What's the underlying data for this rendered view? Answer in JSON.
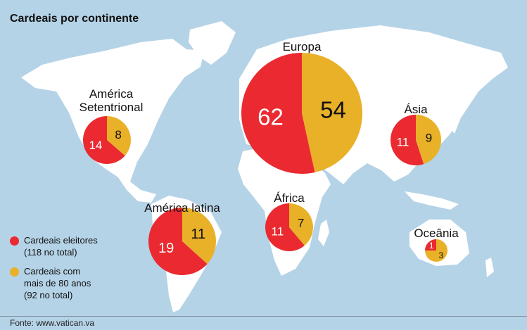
{
  "title": "Cardeais por continente",
  "source": "Fonte: www.vatican.va",
  "colors": {
    "electors": "#ea2a30",
    "over80": "#e9b128",
    "land": "#ffffff",
    "sea": "#b5d3e7"
  },
  "legend": [
    {
      "label": "Cardeais eleitores\n(118 no total)",
      "color": "#ea2a30"
    },
    {
      "label": "Cardeais com\nmais de 80 anos\n(92 no total)",
      "color": "#e9b128"
    }
  ],
  "chart_data": {
    "type": "pie",
    "series_labels": [
      "Cardeais eleitores",
      "Cardeais com mais de 80 anos"
    ],
    "regions": [
      {
        "name": "América\nSetentrional",
        "electors": 14,
        "over80": 8
      },
      {
        "name": "Europa",
        "electors": 62,
        "over80": 54
      },
      {
        "name": "Ásia",
        "electors": 11,
        "over80": 9
      },
      {
        "name": "África",
        "electors": 11,
        "over80": 7
      },
      {
        "name": "América latina",
        "electors": 19,
        "over80": 11
      },
      {
        "name": "Oceânia",
        "electors": 1,
        "over80": 3
      }
    ]
  }
}
